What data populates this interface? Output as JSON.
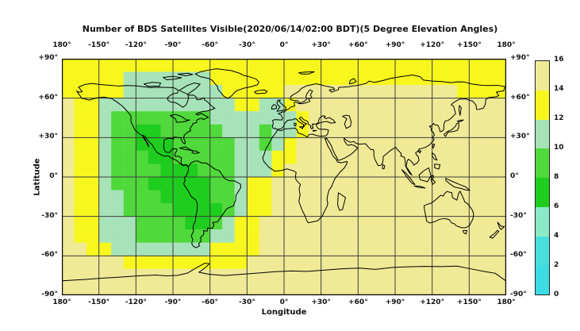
{
  "title": "Number of BDS Satellites Visible(2020/06/14/02:00 BDT)(5 Degree Elevation Angles)",
  "axes": {
    "xlabel": "Longitude",
    "ylabel": "Latitude",
    "lon_ticks": [
      "180°",
      "-150°",
      "-120°",
      "-90°",
      "-60°",
      "-30°",
      "0°",
      "+30°",
      "+60°",
      "+90°",
      "+120°",
      "+150°",
      "180°"
    ],
    "lat_ticks": [
      "+90°",
      "+60°",
      "+30°",
      "0°",
      "-30°",
      "-60°",
      "-90°"
    ]
  },
  "colorbar": {
    "tick_labels": [
      "16",
      "14",
      "12",
      "10",
      "8",
      "6",
      "4",
      "2",
      "0"
    ],
    "segment_colors_top_to_bottom": [
      "#F0EA97",
      "#F7F71E",
      "#A7E3B8",
      "#4FD93A",
      "#1ECD1E",
      "#8CE9C7",
      "#49DEDE",
      "#3CDCE4"
    ],
    "value_range": [
      0,
      16
    ]
  },
  "chart_data": {
    "type": "heatmap",
    "projection": "equirectangular",
    "title": "Number of BDS Satellites Visible(2020/06/14/02:00 BDT)(5 Degree Elevation Angles)",
    "xlabel": "Longitude",
    "ylabel": "Latitude",
    "lon_range": [
      -180,
      180
    ],
    "lat_range": [
      -90,
      90
    ],
    "grid_step_deg": 30,
    "cell_size_deg": 10,
    "rows_order": "north_to_south",
    "palette": {
      "7": "#1ECD1E",
      "9": "#4FD93A",
      "11": "#A7E3B8",
      "13": "#F7F71E",
      "15": "#F0EA97"
    },
    "values_grid": [
      [
        13,
        13,
        13,
        13,
        13,
        13,
        13,
        13,
        13,
        13,
        13,
        13,
        13,
        13,
        13,
        13,
        13,
        13,
        13,
        13,
        13,
        13,
        13,
        13,
        13,
        13,
        13,
        13,
        13,
        13,
        13,
        13,
        13,
        13,
        13,
        13
      ],
      [
        13,
        13,
        13,
        13,
        13,
        11,
        11,
        11,
        11,
        11,
        11,
        11,
        13,
        13,
        13,
        13,
        13,
        13,
        13,
        13,
        13,
        13,
        13,
        13,
        13,
        13,
        13,
        13,
        13,
        13,
        13,
        13,
        13,
        13,
        13,
        13
      ],
      [
        13,
        13,
        13,
        13,
        13,
        11,
        11,
        11,
        11,
        11,
        11,
        11,
        11,
        13,
        13,
        13,
        13,
        13,
        15,
        15,
        15,
        15,
        15,
        15,
        15,
        15,
        15,
        15,
        15,
        15,
        15,
        15,
        13,
        13,
        13,
        13
      ],
      [
        15,
        13,
        13,
        11,
        11,
        11,
        11,
        11,
        11,
        11,
        11,
        11,
        11,
        11,
        13,
        13,
        11,
        11,
        13,
        15,
        15,
        15,
        15,
        15,
        15,
        15,
        15,
        15,
        15,
        15,
        15,
        15,
        15,
        15,
        15,
        15
      ],
      [
        15,
        13,
        13,
        11,
        9,
        9,
        9,
        9,
        9,
        9,
        9,
        9,
        11,
        11,
        11,
        11,
        11,
        11,
        11,
        13,
        15,
        15,
        15,
        15,
        15,
        15,
        15,
        15,
        15,
        15,
        15,
        15,
        15,
        15,
        15,
        15
      ],
      [
        15,
        13,
        13,
        11,
        9,
        9,
        7,
        7,
        9,
        9,
        9,
        9,
        9,
        11,
        11,
        11,
        9,
        11,
        11,
        13,
        15,
        15,
        15,
        15,
        15,
        15,
        15,
        15,
        15,
        15,
        15,
        15,
        15,
        15,
        15,
        15
      ],
      [
        15,
        13,
        13,
        11,
        9,
        9,
        7,
        7,
        7,
        9,
        9,
        9,
        9,
        9,
        11,
        11,
        9,
        11,
        13,
        15,
        15,
        15,
        15,
        15,
        15,
        15,
        15,
        15,
        15,
        15,
        15,
        15,
        15,
        15,
        15,
        15
      ],
      [
        15,
        13,
        13,
        11,
        9,
        9,
        9,
        7,
        7,
        9,
        9,
        9,
        9,
        9,
        11,
        11,
        11,
        13,
        13,
        15,
        15,
        15,
        15,
        15,
        15,
        15,
        15,
        15,
        15,
        15,
        15,
        15,
        15,
        15,
        15,
        15
      ],
      [
        15,
        13,
        13,
        11,
        9,
        9,
        9,
        9,
        7,
        7,
        7,
        9,
        9,
        9,
        11,
        11,
        11,
        13,
        15,
        15,
        15,
        15,
        15,
        15,
        15,
        15,
        15,
        15,
        15,
        15,
        15,
        15,
        15,
        15,
        15,
        15
      ],
      [
        15,
        13,
        13,
        11,
        9,
        9,
        9,
        7,
        7,
        7,
        7,
        7,
        9,
        9,
        11,
        13,
        13,
        15,
        15,
        15,
        15,
        15,
        15,
        15,
        15,
        15,
        15,
        15,
        15,
        15,
        15,
        15,
        15,
        15,
        15,
        15
      ],
      [
        15,
        13,
        13,
        11,
        11,
        9,
        9,
        9,
        7,
        7,
        7,
        7,
        9,
        9,
        11,
        13,
        13,
        15,
        15,
        15,
        15,
        15,
        15,
        15,
        15,
        15,
        15,
        15,
        15,
        15,
        15,
        15,
        15,
        15,
        15,
        15
      ],
      [
        15,
        13,
        13,
        11,
        11,
        9,
        9,
        9,
        9,
        7,
        7,
        7,
        7,
        9,
        11,
        13,
        13,
        15,
        15,
        15,
        15,
        15,
        15,
        15,
        15,
        15,
        15,
        15,
        15,
        15,
        15,
        15,
        15,
        15,
        15,
        15
      ],
      [
        15,
        13,
        13,
        11,
        11,
        11,
        9,
        9,
        9,
        9,
        7,
        7,
        9,
        11,
        13,
        13,
        15,
        15,
        15,
        15,
        15,
        15,
        15,
        15,
        15,
        15,
        15,
        15,
        15,
        15,
        15,
        15,
        15,
        15,
        15,
        15
      ],
      [
        15,
        13,
        13,
        11,
        11,
        11,
        9,
        9,
        9,
        9,
        9,
        9,
        11,
        11,
        13,
        13,
        15,
        15,
        15,
        15,
        15,
        15,
        15,
        15,
        15,
        15,
        15,
        15,
        15,
        15,
        15,
        15,
        15,
        15,
        15,
        15
      ],
      [
        15,
        15,
        13,
        13,
        11,
        11,
        11,
        11,
        11,
        11,
        11,
        11,
        13,
        13,
        13,
        13,
        15,
        15,
        15,
        15,
        15,
        15,
        15,
        15,
        15,
        15,
        15,
        15,
        15,
        15,
        15,
        15,
        15,
        15,
        15,
        15
      ],
      [
        15,
        15,
        15,
        15,
        15,
        13,
        13,
        13,
        13,
        13,
        13,
        13,
        13,
        13,
        13,
        15,
        15,
        15,
        15,
        15,
        15,
        15,
        15,
        15,
        15,
        15,
        15,
        15,
        15,
        15,
        15,
        15,
        15,
        15,
        15,
        15
      ],
      [
        15,
        15,
        15,
        15,
        15,
        15,
        15,
        15,
        15,
        15,
        15,
        15,
        15,
        15,
        15,
        15,
        15,
        15,
        15,
        15,
        15,
        15,
        15,
        15,
        15,
        15,
        15,
        15,
        15,
        15,
        15,
        15,
        15,
        15,
        15,
        15
      ],
      [
        15,
        15,
        15,
        15,
        15,
        15,
        15,
        15,
        15,
        15,
        15,
        15,
        15,
        15,
        15,
        15,
        15,
        15,
        15,
        15,
        15,
        15,
        15,
        15,
        15,
        15,
        15,
        15,
        15,
        15,
        15,
        15,
        15,
        15,
        15,
        15
      ]
    ]
  }
}
